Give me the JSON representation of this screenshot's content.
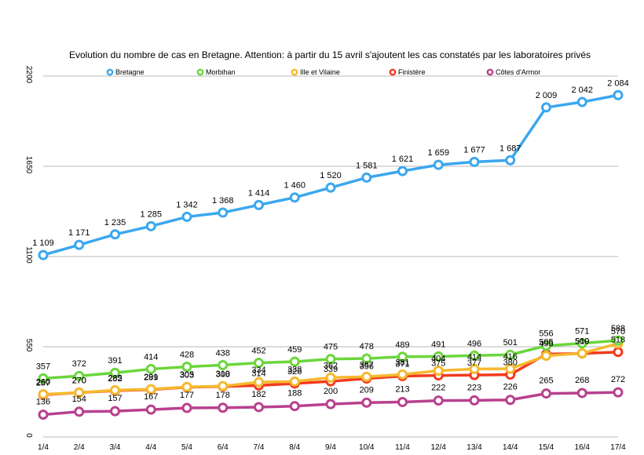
{
  "chart_data": {
    "type": "line",
    "title": "Evolution du nombre de cas en Bretagne. Attention: à partir du 15 avril s'ajoutent les cas constatés par les laboratoires privés",
    "xlabel": "",
    "ylabel": "",
    "categories": [
      "1/4",
      "2/4",
      "3/4",
      "4/4",
      "5/4",
      "6/4",
      "7/4",
      "8/4",
      "9/4",
      "10/4",
      "11/4",
      "12/4",
      "13/4",
      "14/4",
      "15/4",
      "16/4",
      "17/4"
    ],
    "ylim": [
      0,
      2200
    ],
    "yticks": [
      "0",
      "550",
      "1100",
      "1650",
      "2200"
    ],
    "grid": "horizontal",
    "legend_position": "top",
    "series": [
      {
        "name": "Bretagne",
        "color": "#3BA7EF",
        "label_values": true,
        "values": [
          1109,
          1171,
          1235,
          1285,
          1342,
          1368,
          1414,
          1460,
          1520,
          1581,
          1621,
          1659,
          1677,
          1687,
          2009,
          2042,
          2084
        ],
        "labels": [
          "1 109",
          "1 171",
          "1 235",
          "1 285",
          "1 342",
          "1 368",
          "1 414",
          "1 460",
          "1 520",
          "1 581",
          "1 621",
          "1 659",
          "1 677",
          "1 687",
          "2 009",
          "2 042",
          "2 084"
        ]
      },
      {
        "name": "Morbihan",
        "color": "#6BD63C",
        "label_values": true,
        "values": [
          357,
          372,
          391,
          414,
          428,
          438,
          452,
          459,
          475,
          478,
          489,
          491,
          496,
          501,
          556,
          571,
          588
        ],
        "labels": [
          "357",
          "372",
          "391",
          "414",
          "428",
          "438",
          "452",
          "459",
          "475",
          "478",
          "489",
          "491",
          "496",
          "501",
          "556",
          "571",
          "588"
        ]
      },
      {
        "name": "Ille et Vilaine",
        "color": "#F5B92E",
        "label_values": true,
        "values": [
          260,
          270,
          285,
          291,
          305,
          310,
          334,
          338,
          362,
          367,
          381,
          404,
          414,
          416,
          495,
          510,
          570
        ],
        "labels": [
          "260",
          "270",
          "285",
          "291",
          "305",
          "310",
          "334",
          "338",
          "362",
          "367",
          "381",
          "404",
          "414",
          "416",
          "495",
          "510",
          "570"
        ]
      },
      {
        "name": "Finistère",
        "color": "#F23A1F",
        "label_values": true,
        "values": [
          257,
          270,
          282,
          289,
          303,
          308,
          314,
          326,
          339,
          356,
          371,
          375,
          377,
          380,
          505,
          509,
          518
        ],
        "labels": [
          "257",
          "270",
          "282",
          "289",
          "303",
          "308",
          "314",
          "326",
          "339",
          "356",
          "371",
          "375",
          "377",
          "380",
          "505",
          "509",
          "518"
        ]
      },
      {
        "name": "Côtes d'Armor",
        "color": "#B8408E",
        "label_values": true,
        "values": [
          136,
          154,
          157,
          167,
          177,
          178,
          182,
          188,
          200,
          209,
          213,
          222,
          223,
          226,
          265,
          268,
          272
        ],
        "labels": [
          "136",
          "154",
          "157",
          "167",
          "177",
          "178",
          "182",
          "188",
          "200",
          "209",
          "213",
          "222",
          "223",
          "226",
          "265",
          "268",
          "272"
        ]
      }
    ]
  }
}
